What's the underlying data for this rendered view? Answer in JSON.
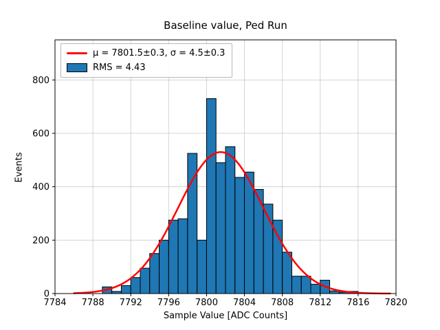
{
  "title": "Baseline value, Ped Run",
  "xlabel": "Sample Value [ADC Counts]",
  "ylabel": "Events",
  "legend": {
    "fit_label": "μ = 7801.5±0.3, σ = 4.5±0.3",
    "hist_label": "RMS = 4.43"
  },
  "colors": {
    "bar_fill": "#1f77b4",
    "bar_edge": "#000000",
    "fit_line": "#ff0000",
    "grid": "#cfcfcf",
    "axes": "#000000"
  },
  "chart_data": {
    "type": "bar",
    "title": "Baseline value, Ped Run",
    "xlabel": "Sample Value [ADC Counts]",
    "ylabel": "Events",
    "bin_width": 1,
    "bin_left_edges": [
      7789,
      7790,
      7791,
      7792,
      7793,
      7794,
      7795,
      7796,
      7797,
      7798,
      7799,
      7800,
      7801,
      7802,
      7803,
      7804,
      7805,
      7806,
      7807,
      7808,
      7809,
      7810,
      7811,
      7812,
      7813,
      7814,
      7815
    ],
    "values": [
      25,
      8,
      30,
      60,
      95,
      150,
      200,
      275,
      280,
      525,
      200,
      730,
      490,
      550,
      435,
      455,
      390,
      335,
      275,
      155,
      65,
      65,
      35,
      50,
      10,
      5,
      8
    ],
    "fit": {
      "type": "gaussian",
      "mu": 7801.5,
      "mu_err": 0.3,
      "sigma": 4.5,
      "sigma_err": 0.3,
      "amplitude": 530,
      "x_start": 7786,
      "x_end": 7819.5
    },
    "rms": 4.43,
    "xlim": [
      7784,
      7820
    ],
    "ylim": [
      0,
      950
    ],
    "xticks": [
      7784,
      7788,
      7792,
      7796,
      7800,
      7804,
      7808,
      7812,
      7816,
      7820
    ],
    "yticks": [
      0,
      200,
      400,
      600,
      800
    ],
    "grid": true,
    "legend_position": "upper left"
  }
}
